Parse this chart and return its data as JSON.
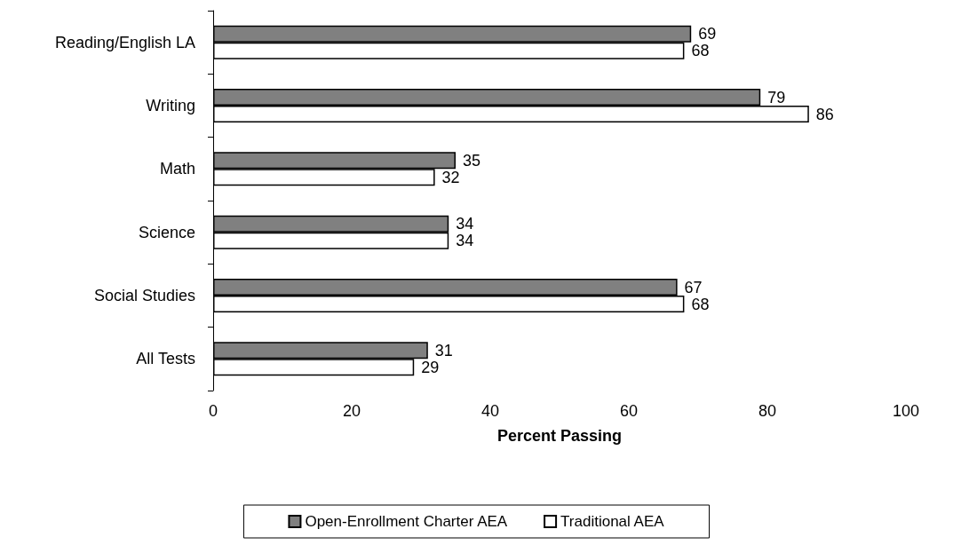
{
  "chart_data": {
    "type": "bar",
    "orientation": "horizontal",
    "xlabel": "Percent Passing",
    "categories": [
      "Reading/English LA",
      "Writing",
      "Math",
      "Science",
      "Social Studies",
      "All Tests"
    ],
    "series": [
      {
        "name": "Open-Enrollment Charter AEA",
        "color": "#808080",
        "values": [
          69,
          79,
          35,
          34,
          67,
          31
        ]
      },
      {
        "name": "Traditional AEA",
        "color": "#ffffff",
        "values": [
          68,
          86,
          32,
          34,
          68,
          29
        ]
      }
    ],
    "xlim": [
      0,
      100
    ],
    "xticks": [
      0,
      20,
      40,
      60,
      80,
      100
    ],
    "data_labels": true,
    "grid": false,
    "legend": "bottom"
  }
}
